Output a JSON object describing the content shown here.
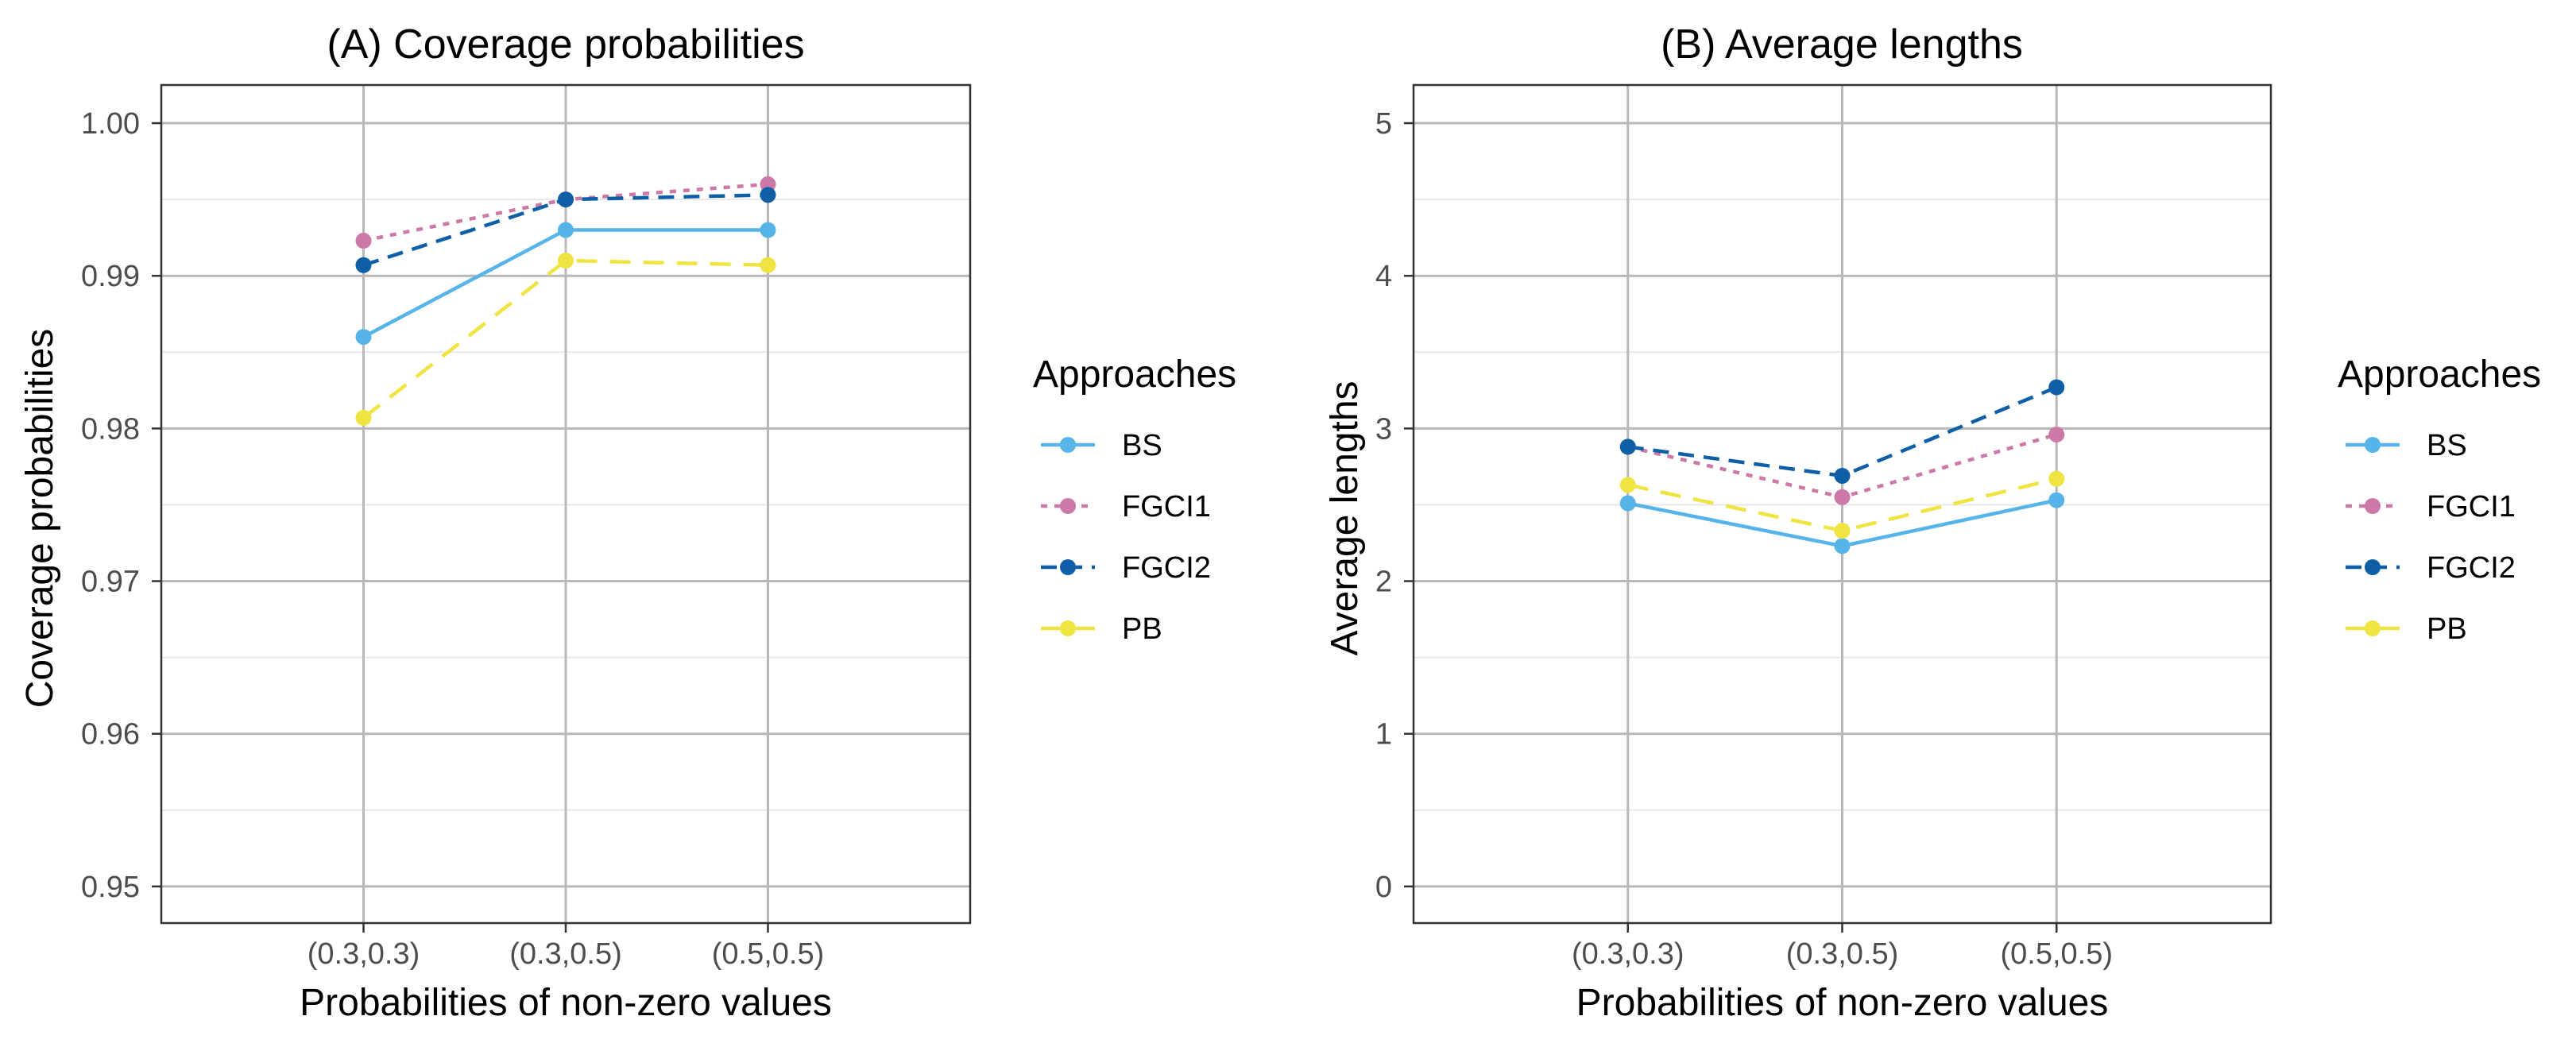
{
  "chart_data": [
    {
      "type": "line",
      "title": "(A) Coverage probabilities",
      "xlabel": "Probabilities of non-zero values",
      "ylabel": "Coverage probabilities",
      "categories": [
        "(0.3,0.3)",
        "(0.3,0.5)",
        "(0.5,0.5)"
      ],
      "ylim": [
        0.9476,
        1.0025
      ],
      "yticks": [
        0.95,
        0.96,
        0.97,
        0.98,
        0.99,
        1.0
      ],
      "ytick_labels": [
        "0.95",
        "0.96",
        "0.97",
        "0.98",
        "0.99",
        "1.00"
      ],
      "grid": true,
      "legend_title": "Approaches",
      "legend_position": "right",
      "series": [
        {
          "name": "BS",
          "color": "#56B4E9",
          "dash": "solid",
          "values": [
            0.986,
            0.993,
            0.993
          ]
        },
        {
          "name": "FGCI1",
          "color": "#CC79A7",
          "dash": "dotted",
          "values": [
            0.9923,
            0.995,
            0.996
          ]
        },
        {
          "name": "FGCI2",
          "color": "#0F5FA6",
          "dash": "dashed",
          "values": [
            0.9907,
            0.995,
            0.9953
          ]
        },
        {
          "name": "PB",
          "color": "#F0E442",
          "dash": "longdash",
          "values": [
            0.9807,
            0.991,
            0.9907
          ]
        }
      ]
    },
    {
      "type": "line",
      "title": "(B) Average lengths",
      "xlabel": "Probabilities of non-zero values",
      "ylabel": "Average lengths",
      "categories": [
        "(0.3,0.3)",
        "(0.3,0.5)",
        "(0.5,0.5)"
      ],
      "ylim": [
        -0.24,
        5.25
      ],
      "yticks": [
        0,
        1,
        2,
        3,
        4,
        5
      ],
      "ytick_labels": [
        "0",
        "1",
        "2",
        "3",
        "4",
        "5"
      ],
      "grid": true,
      "legend_title": "Approaches",
      "legend_position": "right",
      "series": [
        {
          "name": "BS",
          "color": "#56B4E9",
          "dash": "solid",
          "values": [
            2.51,
            2.23,
            2.53
          ]
        },
        {
          "name": "FGCI1",
          "color": "#CC79A7",
          "dash": "dotted",
          "values": [
            2.88,
            2.55,
            2.96
          ]
        },
        {
          "name": "FGCI2",
          "color": "#0F5FA6",
          "dash": "dashed",
          "values": [
            2.88,
            2.69,
            3.27
          ]
        },
        {
          "name": "PB",
          "color": "#F0E442",
          "dash": "longdash",
          "values": [
            2.63,
            2.33,
            2.67
          ]
        }
      ]
    }
  ]
}
